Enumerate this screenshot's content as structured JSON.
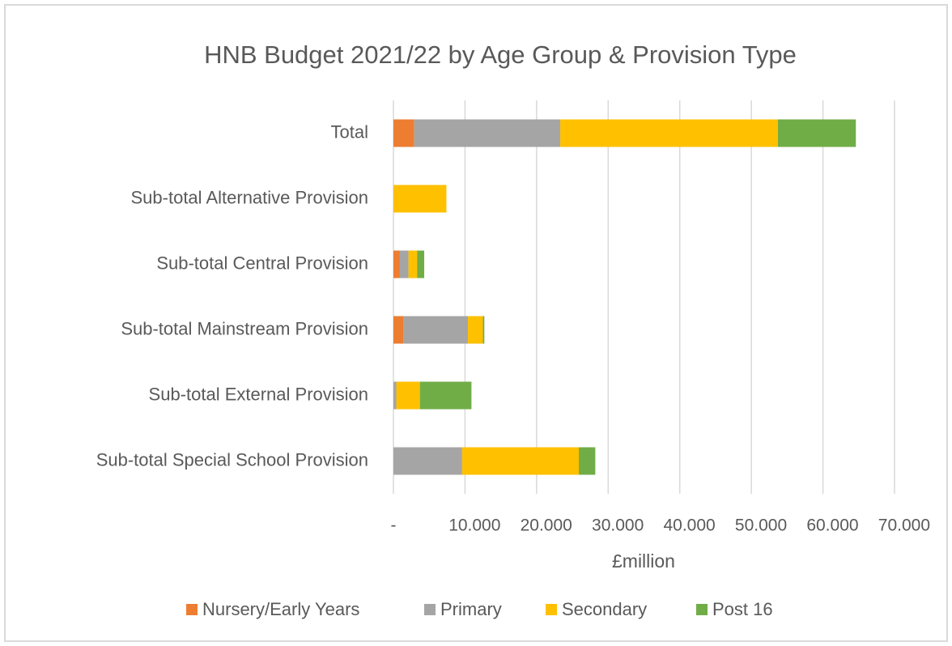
{
  "chart_data": {
    "type": "stacked-barh",
    "title": "HNB Budget 2021/22 by Age Group & Provision Type",
    "xlabel": "£million",
    "categories": [
      "Total",
      "Sub-total Alternative Provision",
      "Sub-total Central Provision",
      "Sub-total Mainstream Provision",
      "Sub-total External Provision",
      "Sub-total Special School Provision"
    ],
    "series": [
      {
        "name": "Nursery/Early Years",
        "color": "#ED7D31",
        "values": [
          2.9,
          0,
          0.9,
          1.4,
          0,
          0
        ]
      },
      {
        "name": "Primary",
        "color": "#A5A5A5",
        "values": [
          20.4,
          0,
          1.2,
          9.0,
          0.4,
          9.6
        ]
      },
      {
        "name": "Secondary",
        "color": "#FFC000",
        "values": [
          30.4,
          7.4,
          1.2,
          2.1,
          3.3,
          16.3
        ]
      },
      {
        "name": "Post 16",
        "color": "#70AD47",
        "values": [
          10.9,
          0,
          1.0,
          0.2,
          7.2,
          2.3
        ]
      }
    ],
    "xlim": [
      0,
      70
    ],
    "xticks": [
      {
        "value": 0,
        "label": "-"
      },
      {
        "value": 10,
        "label": "10.000"
      },
      {
        "value": 20,
        "label": "20.000"
      },
      {
        "value": 30,
        "label": "30.000"
      },
      {
        "value": 40,
        "label": "40.000"
      },
      {
        "value": 50,
        "label": "50.000"
      },
      {
        "value": 60,
        "label": "60.000"
      },
      {
        "value": 70,
        "label": "70.000"
      }
    ],
    "grid": true,
    "legend": "bottom"
  }
}
